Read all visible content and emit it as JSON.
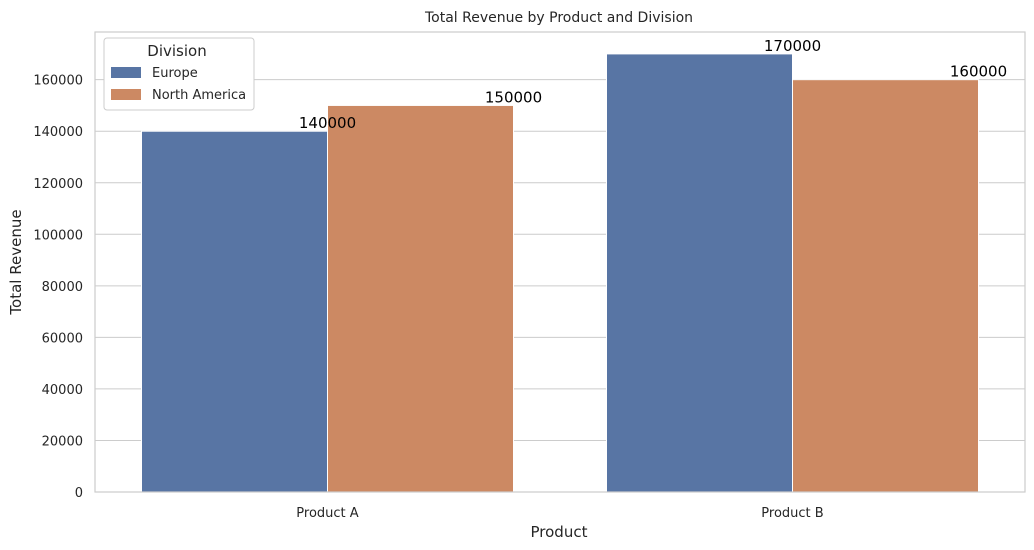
{
  "chart_data": {
    "type": "bar",
    "title": "Total Revenue by Product and Division",
    "xlabel": "Product",
    "ylabel": "Total Revenue",
    "categories": [
      "Product A",
      "Product B"
    ],
    "series": [
      {
        "name": "Europe",
        "color": "#5875a4",
        "values": [
          140000,
          170000
        ],
        "labels": [
          "140000",
          "170000"
        ]
      },
      {
        "name": "North America",
        "color": "#cc8963",
        "values": [
          150000,
          160000
        ],
        "labels": [
          "150000",
          "160000"
        ]
      }
    ],
    "ylim": [
      0,
      178500
    ],
    "yticks": [
      0,
      20000,
      40000,
      60000,
      80000,
      100000,
      120000,
      140000,
      160000
    ],
    "ytick_labels": [
      "0",
      "20000",
      "40000",
      "60000",
      "80000",
      "100000",
      "120000",
      "140000",
      "160000"
    ],
    "grid": "horizontal",
    "legend": {
      "title": "Division",
      "position": "top-left"
    }
  }
}
